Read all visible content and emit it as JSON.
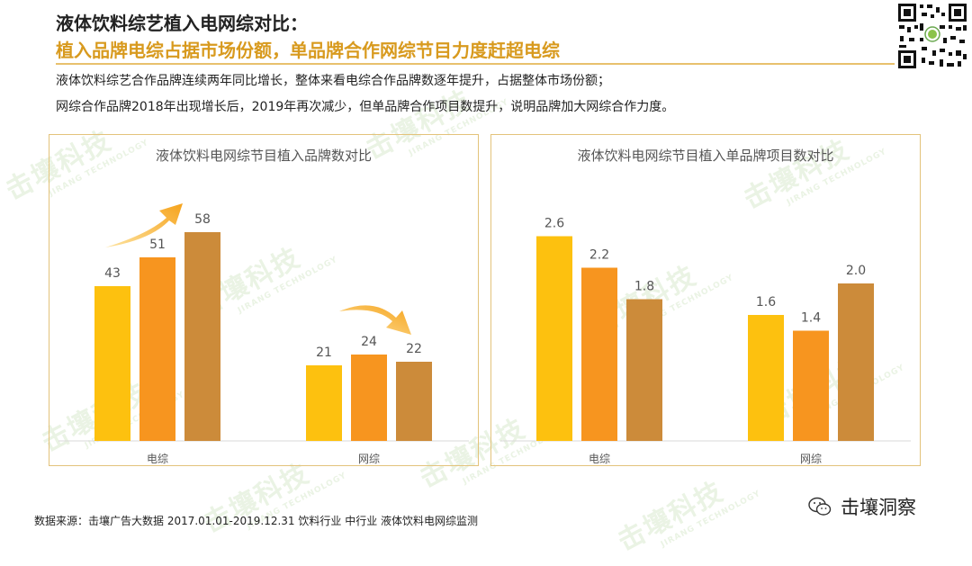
{
  "header": {
    "title": "液体饮料综艺植入电网综对比：",
    "subtitle": "植入品牌电综占据市场份额，单品牌合作网综节目力度赶超电综"
  },
  "description": {
    "line1": "液体饮料综艺合作品牌连续两年同比增长，整体来看电综合作品牌数逐年提升，占据整体市场份额；",
    "line2": "网综合作品牌2018年出现增长后，2019年再次减少，但单品牌合作项目数提升，说明品牌加大网综合作力度。"
  },
  "watermark": {
    "text": "击壤科技",
    "sub": "JIRANG TECHNOLOGY"
  },
  "footer": {
    "source": "数据来源：击壤广告大数据 2017.01.01-2019.12.31 饮料行业 中行业 液体饮料电网综监测",
    "brand": "击壤洞察"
  },
  "colors": {
    "bar1": "#fdc10f",
    "bar2": "#f7951f",
    "bar3": "#cc8b3a",
    "panel_border": "#e3c37b",
    "accent": "#d89a1e"
  },
  "chart_data": [
    {
      "type": "bar",
      "title": "液体饮料电网综节目植入品牌数对比",
      "categories": [
        "电综",
        "网综"
      ],
      "series": [
        {
          "values": [
            43,
            21
          ]
        },
        {
          "values": [
            51,
            24
          ]
        },
        {
          "values": [
            58,
            22
          ]
        }
      ],
      "ylim": [
        0,
        70
      ],
      "legend": "none",
      "grid": false
    },
    {
      "type": "bar",
      "title": "液体饮料电网综节目植入单品牌项目数对比",
      "categories": [
        "电综",
        "网综"
      ],
      "series": [
        {
          "values": [
            2.6,
            1.6
          ]
        },
        {
          "values": [
            2.2,
            1.4
          ]
        },
        {
          "values": [
            1.8,
            2.0
          ]
        }
      ],
      "ylim": [
        0,
        3.2
      ],
      "legend": "none",
      "grid": false
    }
  ]
}
